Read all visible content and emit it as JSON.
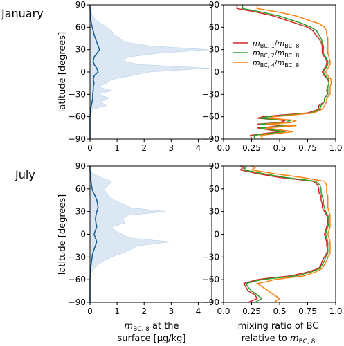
{
  "row_titles": [
    "January",
    "July"
  ],
  "ylabel": "latitude [degrees]",
  "xlabel_left": [
    "at the",
    "surface [µg/kg]"
  ],
  "xlabel_left_symbol": {
    "base": "m",
    "sub": "BC, 8"
  },
  "xlabel_right": [
    "mixing ratio of BC",
    "relative to"
  ],
  "xlabel_right_symbol": {
    "base": "m",
    "sub": "BC, 8"
  },
  "colors": {
    "red": "#d62728",
    "green": "#2ca02c",
    "orange": "#ff7f0e",
    "blue": "#1f5f99",
    "band": "#dbe8f4"
  },
  "chart_data": [
    {
      "type": "area",
      "panel": "January surface concentration",
      "orientation": "horizontal",
      "xlim": [
        0,
        4.5
      ],
      "ylim": [
        -90,
        90
      ],
      "xticks": [
        0,
        1,
        2,
        3,
        4
      ],
      "yticks": [
        -90,
        -60,
        -30,
        0,
        30,
        60,
        90
      ],
      "lat": [
        -90,
        -80,
        -70,
        -60,
        -50,
        -45,
        -40,
        -35,
        -30,
        -25,
        -20,
        -15,
        -10,
        -5,
        0,
        5,
        10,
        15,
        20,
        25,
        30,
        35,
        40,
        45,
        50,
        55,
        60,
        65,
        70,
        75,
        80,
        85,
        90
      ],
      "mean": [
        0,
        0,
        0,
        0,
        0.02,
        0.05,
        0.08,
        0.1,
        0.1,
        0.12,
        0.12,
        0.15,
        0.12,
        0.15,
        0.3,
        0.25,
        0.15,
        0.12,
        0.15,
        0.25,
        0.35,
        0.3,
        0.25,
        0.2,
        0.15,
        0.12,
        0.08,
        0.05,
        0.03,
        0.02,
        0.01,
        0,
        0
      ],
      "band_upper": [
        0,
        0,
        0,
        0,
        0.1,
        0.6,
        0.4,
        0.7,
        0.3,
        0.8,
        0.3,
        0.6,
        0.8,
        1.5,
        2.2,
        4.4,
        1.8,
        1.2,
        1.4,
        2.5,
        4.4,
        2.2,
        1.3,
        1.1,
        0.9,
        0.8,
        0.6,
        0.4,
        0.2,
        0.1,
        0.05,
        0,
        0
      ]
    },
    {
      "type": "line",
      "panel": "January mixing ratio",
      "orientation": "horizontal",
      "xlim": [
        0,
        1
      ],
      "ylim": [
        -90,
        90
      ],
      "xticks": [
        0,
        0.25,
        0.5,
        0.75,
        1
      ],
      "xticklabels": [
        "0.0",
        "0.25",
        "0.5",
        "0.75",
        "1.0"
      ],
      "yticks": [
        -90,
        -60,
        -30,
        0,
        30,
        60,
        90
      ],
      "legend": "upper-right",
      "lat": [
        -90,
        -85,
        -80,
        -75,
        -72,
        -70,
        -68,
        -65,
        -62,
        -60,
        -58,
        -55,
        -50,
        -45,
        -40,
        -35,
        -30,
        -25,
        -20,
        -15,
        -10,
        -5,
        0,
        5,
        10,
        15,
        20,
        25,
        30,
        35,
        40,
        45,
        50,
        55,
        60,
        65,
        70,
        75,
        80,
        85,
        90
      ],
      "series": [
        {
          "name_base": "m",
          "name_sub": "BC, 1",
          "den_base": "m",
          "den_sub": "BC, 8",
          "color": "red",
          "values": [
            0.25,
            0.24,
            0.5,
            0.3,
            0.55,
            0.3,
            0.5,
            0.55,
            0.3,
            0.35,
            0.5,
            0.75,
            0.85,
            0.85,
            0.9,
            0.9,
            0.93,
            0.92,
            0.93,
            0.94,
            0.93,
            0.9,
            0.88,
            0.9,
            0.92,
            0.92,
            0.9,
            0.88,
            0.88,
            0.88,
            0.87,
            0.85,
            0.82,
            0.8,
            0.75,
            0.65,
            0.55,
            0.45,
            0.3,
            0.12,
            0.12
          ]
        },
        {
          "name_base": "m",
          "name_sub": "BC, 2",
          "den_base": "m",
          "den_sub": "BC, 8",
          "color": "green",
          "values": [
            0.28,
            0.27,
            0.55,
            0.32,
            0.6,
            0.32,
            0.55,
            0.6,
            0.32,
            0.4,
            0.55,
            0.78,
            0.86,
            0.87,
            0.9,
            0.9,
            0.93,
            0.93,
            0.93,
            0.94,
            0.94,
            0.91,
            0.89,
            0.91,
            0.93,
            0.93,
            0.91,
            0.89,
            0.89,
            0.89,
            0.88,
            0.87,
            0.85,
            0.83,
            0.78,
            0.7,
            0.6,
            0.5,
            0.35,
            0.17,
            0.17
          ]
        },
        {
          "name_base": "m",
          "name_sub": "BC, 4",
          "den_base": "m",
          "den_sub": "BC, 8",
          "color": "orange",
          "values": [
            0.35,
            0.33,
            0.62,
            0.38,
            0.65,
            0.38,
            0.6,
            0.65,
            0.4,
            0.45,
            0.6,
            0.8,
            0.88,
            0.9,
            0.92,
            0.92,
            0.95,
            0.95,
            0.95,
            0.96,
            0.96,
            0.93,
            0.91,
            0.93,
            0.95,
            0.95,
            0.94,
            0.93,
            0.93,
            0.93,
            0.93,
            0.93,
            0.92,
            0.92,
            0.9,
            0.85,
            0.75,
            0.65,
            0.5,
            0.3,
            0.3
          ]
        }
      ]
    },
    {
      "type": "area",
      "panel": "July surface concentration",
      "orientation": "horizontal",
      "xlim": [
        0,
        4.5
      ],
      "ylim": [
        -90,
        90
      ],
      "xticks": [
        0,
        1,
        2,
        3,
        4
      ],
      "yticks": [
        -90,
        -60,
        -30,
        0,
        30,
        60,
        90
      ],
      "lat": [
        -90,
        -80,
        -70,
        -60,
        -50,
        -45,
        -40,
        -35,
        -30,
        -25,
        -20,
        -15,
        -10,
        -5,
        0,
        5,
        10,
        15,
        20,
        25,
        30,
        35,
        40,
        45,
        50,
        55,
        60,
        65,
        70,
        75,
        80,
        85,
        90
      ],
      "mean": [
        0,
        0,
        0,
        0,
        0.01,
        0.02,
        0.04,
        0.06,
        0.08,
        0.1,
        0.15,
        0.2,
        0.25,
        0.2,
        0.15,
        0.2,
        0.25,
        0.22,
        0.2,
        0.22,
        0.25,
        0.3,
        0.28,
        0.25,
        0.2,
        0.12,
        0.08,
        0.05,
        0.04,
        0.02,
        0.01,
        0,
        0
      ],
      "band_upper": [
        0,
        0,
        0,
        0,
        0.05,
        0.15,
        0.3,
        0.5,
        0.8,
        1.2,
        1.5,
        1.8,
        3.0,
        1.5,
        1.2,
        0.9,
        0.8,
        1.3,
        1.2,
        1.4,
        2.8,
        1.5,
        1.2,
        0.9,
        0.7,
        0.6,
        0.5,
        0.7,
        0.8,
        0.4,
        0.1,
        0,
        0
      ]
    },
    {
      "type": "line",
      "panel": "July mixing ratio",
      "orientation": "horizontal",
      "xlim": [
        0,
        1
      ],
      "ylim": [
        -90,
        90
      ],
      "xticks": [
        0,
        0.25,
        0.5,
        0.75,
        1
      ],
      "xticklabels": [
        "0.0",
        "0.25",
        "0.5",
        "0.75",
        "1.0"
      ],
      "yticks": [
        -90,
        -60,
        -30,
        0,
        30,
        60,
        90
      ],
      "lat": [
        -90,
        -85,
        -80,
        -75,
        -70,
        -65,
        -62,
        -60,
        -58,
        -55,
        -50,
        -45,
        -40,
        -35,
        -30,
        -25,
        -20,
        -15,
        -10,
        -5,
        0,
        5,
        10,
        15,
        20,
        25,
        30,
        35,
        40,
        45,
        50,
        55,
        60,
        65,
        70,
        75,
        80,
        85,
        88,
        90
      ],
      "series": [
        {
          "name_base": "m",
          "name_sub": "BC, 1",
          "color": "red",
          "values": [
            0.22,
            0.3,
            0.28,
            0.22,
            0.2,
            0.18,
            0.25,
            0.3,
            0.4,
            0.6,
            0.75,
            0.85,
            0.87,
            0.88,
            0.9,
            0.92,
            0.93,
            0.92,
            0.92,
            0.91,
            0.9,
            0.91,
            0.92,
            0.93,
            0.93,
            0.92,
            0.9,
            0.88,
            0.88,
            0.87,
            0.87,
            0.85,
            0.85,
            0.84,
            0.8,
            0.5,
            0.3,
            0.15,
            0.18,
            0.15
          ]
        },
        {
          "name_base": "m",
          "name_sub": "BC, 2",
          "color": "green",
          "values": [
            0.28,
            0.34,
            0.3,
            0.25,
            0.22,
            0.2,
            0.28,
            0.34,
            0.45,
            0.65,
            0.78,
            0.86,
            0.88,
            0.9,
            0.91,
            0.93,
            0.93,
            0.93,
            0.93,
            0.92,
            0.91,
            0.92,
            0.93,
            0.94,
            0.94,
            0.93,
            0.91,
            0.9,
            0.89,
            0.89,
            0.88,
            0.87,
            0.87,
            0.86,
            0.82,
            0.55,
            0.35,
            0.18,
            0.2,
            0.18
          ]
        },
        {
          "name_base": "m",
          "name_sub": "BC, 4",
          "color": "orange",
          "values": [
            0.45,
            0.5,
            0.45,
            0.4,
            0.35,
            0.3,
            0.4,
            0.45,
            0.55,
            0.72,
            0.82,
            0.88,
            0.9,
            0.92,
            0.93,
            0.95,
            0.95,
            0.95,
            0.95,
            0.94,
            0.93,
            0.94,
            0.95,
            0.95,
            0.95,
            0.95,
            0.94,
            0.93,
            0.93,
            0.93,
            0.93,
            0.92,
            0.92,
            0.92,
            0.9,
            0.7,
            0.45,
            0.25,
            0.28,
            0.25
          ]
        }
      ]
    }
  ]
}
